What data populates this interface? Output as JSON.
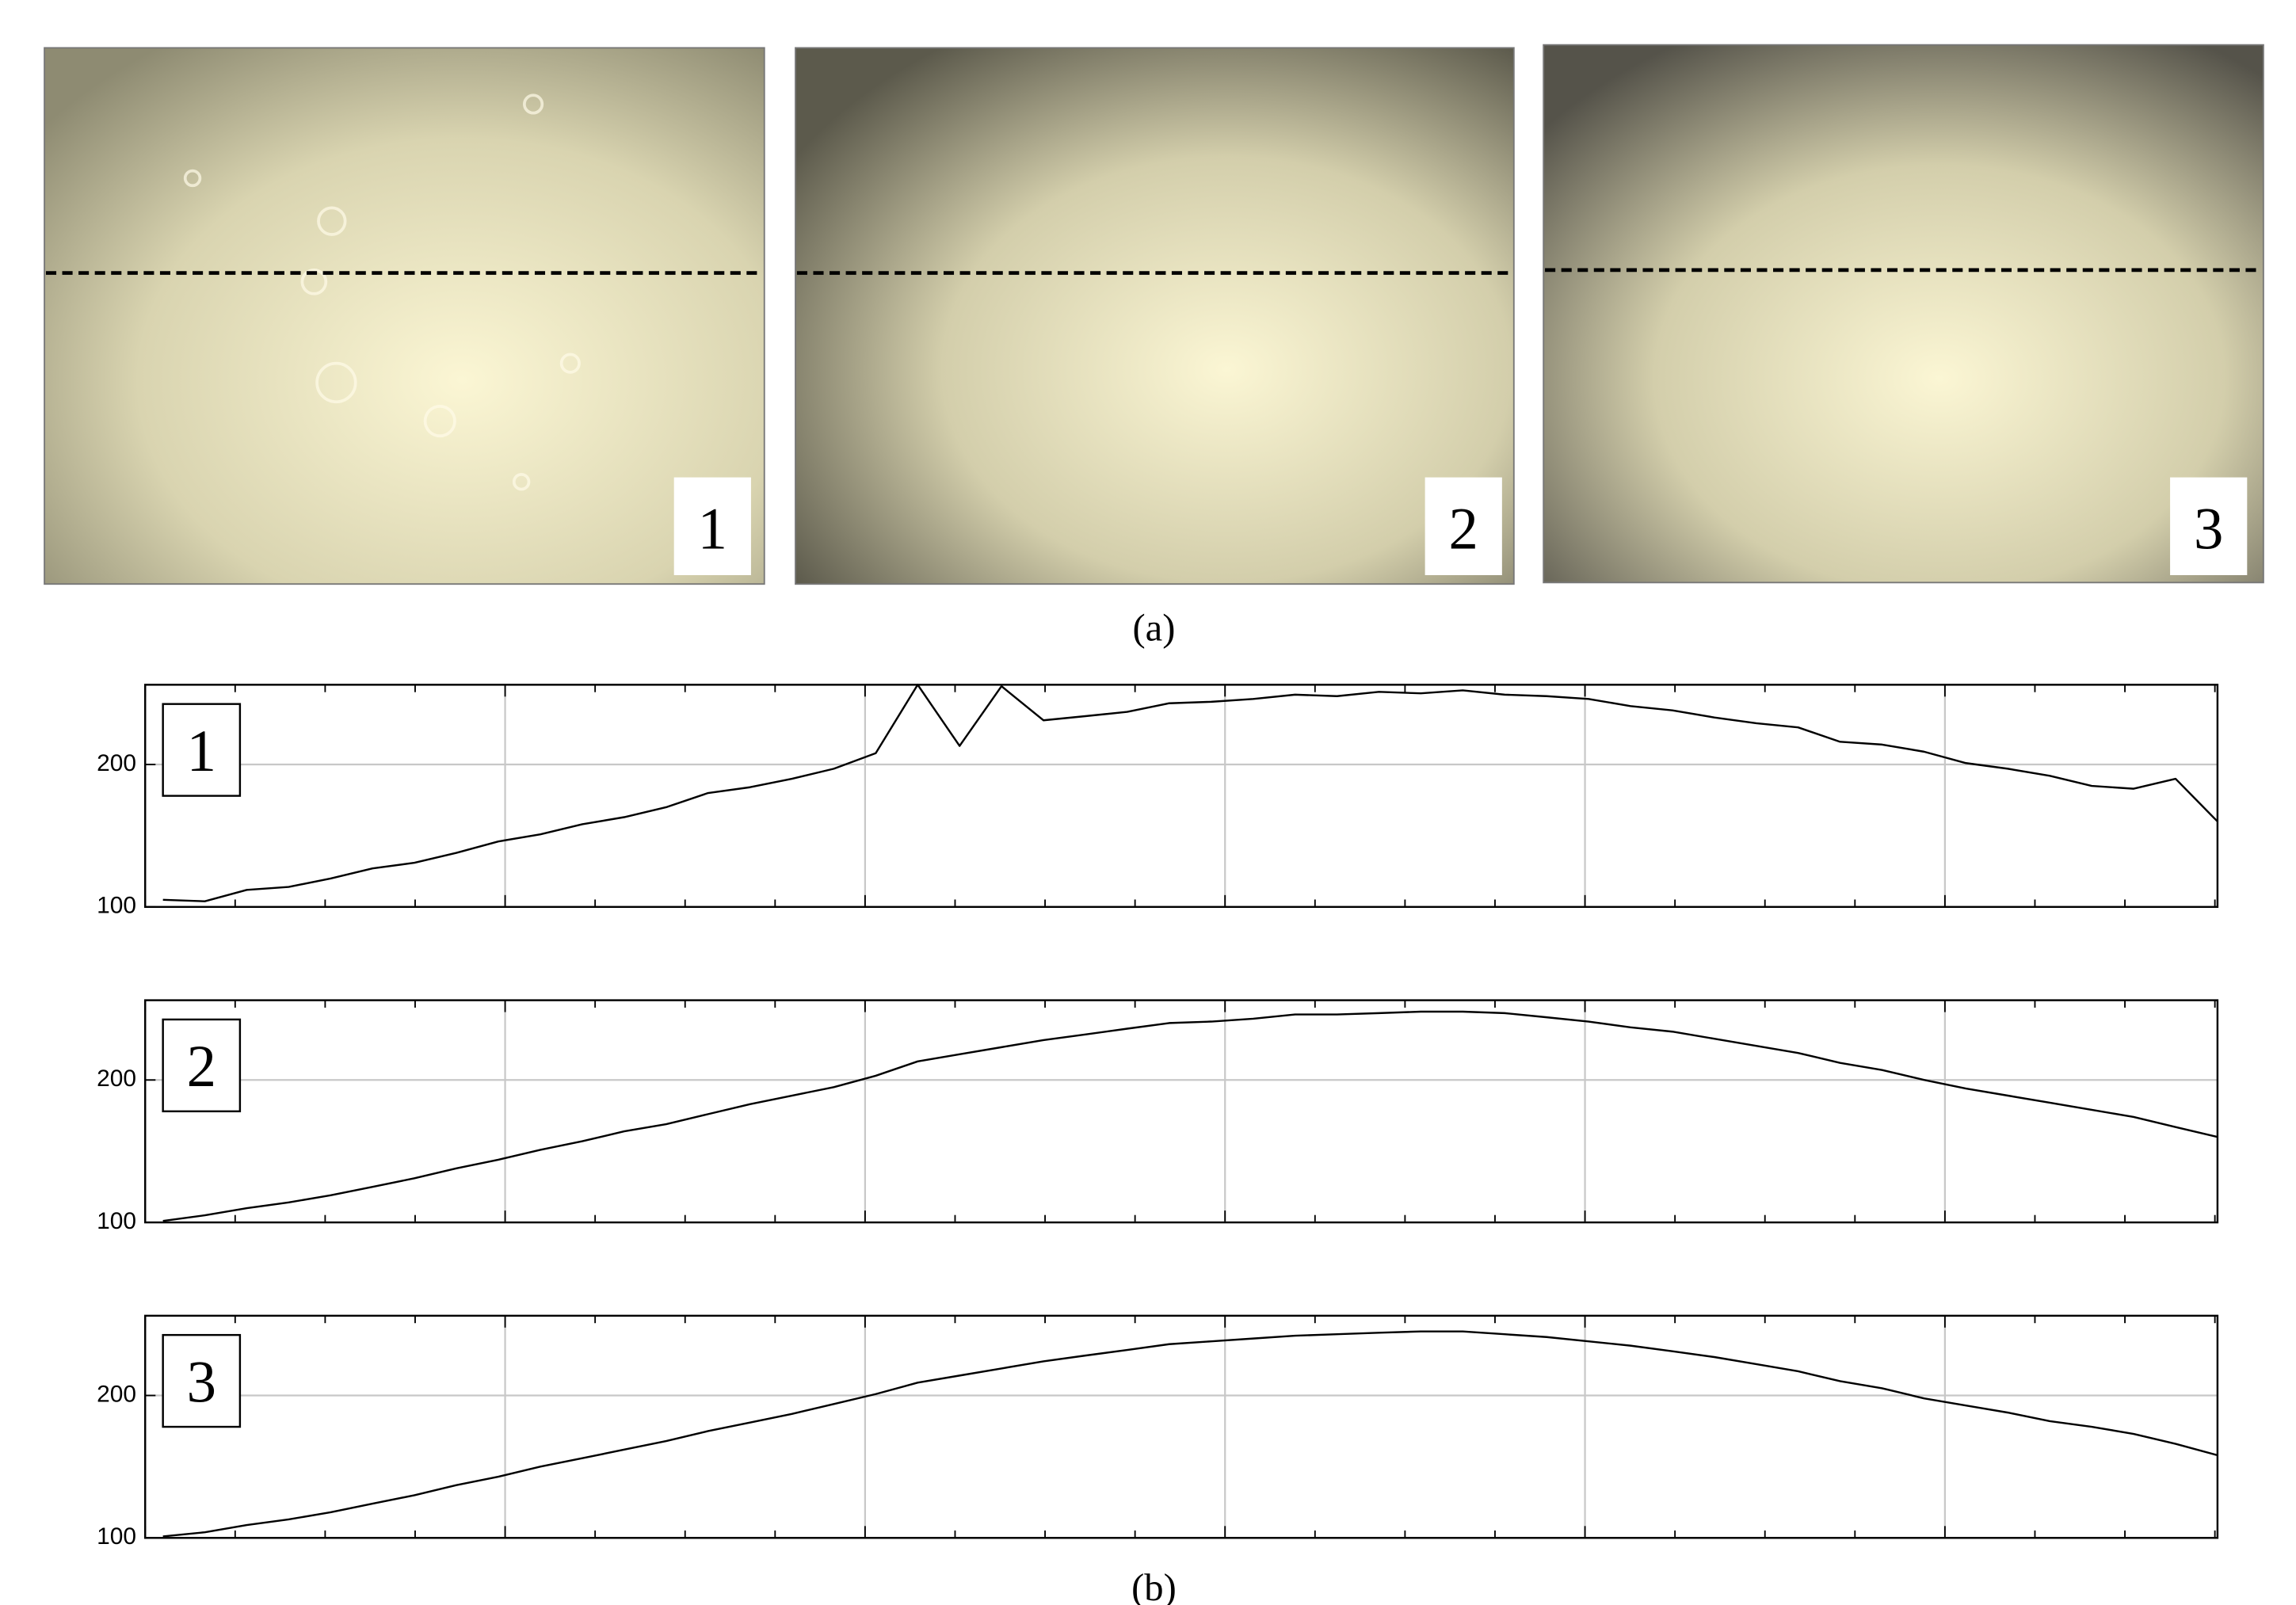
{
  "panel_a": {
    "images": [
      {
        "label": "1"
      },
      {
        "label": "2"
      },
      {
        "label": "3"
      }
    ],
    "caption": "(a)"
  },
  "chart_data": [
    {
      "type": "line",
      "label": "1",
      "color": "#000000",
      "ylim": [
        100,
        256
      ],
      "yticks": [
        100,
        200
      ],
      "grid": true,
      "values": [
        105,
        104,
        112,
        114,
        120,
        127,
        131,
        138,
        146,
        151,
        158,
        163,
        170,
        180,
        184,
        190,
        197,
        208,
        256,
        213,
        255,
        231,
        234,
        237,
        243,
        244,
        246,
        249,
        248,
        251,
        250,
        252,
        249,
        248,
        246,
        241,
        238,
        233,
        229,
        226,
        216,
        214,
        209,
        201,
        197,
        192,
        185,
        183,
        190,
        160
      ]
    },
    {
      "type": "line",
      "label": "2",
      "color": "#000000",
      "ylim": [
        100,
        256
      ],
      "yticks": [
        100,
        200
      ],
      "grid": true,
      "values": [
        101,
        105,
        110,
        114,
        119,
        125,
        131,
        138,
        144,
        151,
        157,
        164,
        169,
        176,
        183,
        189,
        195,
        203,
        213,
        218,
        223,
        228,
        232,
        236,
        240,
        241,
        243,
        246,
        246,
        247,
        248,
        248,
        247,
        244,
        241,
        237,
        234,
        229,
        224,
        219,
        212,
        207,
        200,
        194,
        189,
        184,
        179,
        174,
        167,
        160
      ]
    },
    {
      "type": "line",
      "label": "3",
      "color": "#000000",
      "ylim": [
        100,
        256
      ],
      "yticks": [
        100,
        200
      ],
      "grid": true,
      "values": [
        101,
        104,
        109,
        113,
        118,
        124,
        130,
        137,
        143,
        150,
        156,
        162,
        168,
        175,
        181,
        187,
        194,
        201,
        209,
        214,
        219,
        224,
        228,
        232,
        236,
        238,
        240,
        242,
        243,
        244,
        245,
        245,
        243,
        241,
        238,
        235,
        231,
        227,
        222,
        217,
        210,
        205,
        198,
        193,
        188,
        182,
        178,
        173,
        166,
        158
      ]
    }
  ],
  "caption_b": "(b)"
}
